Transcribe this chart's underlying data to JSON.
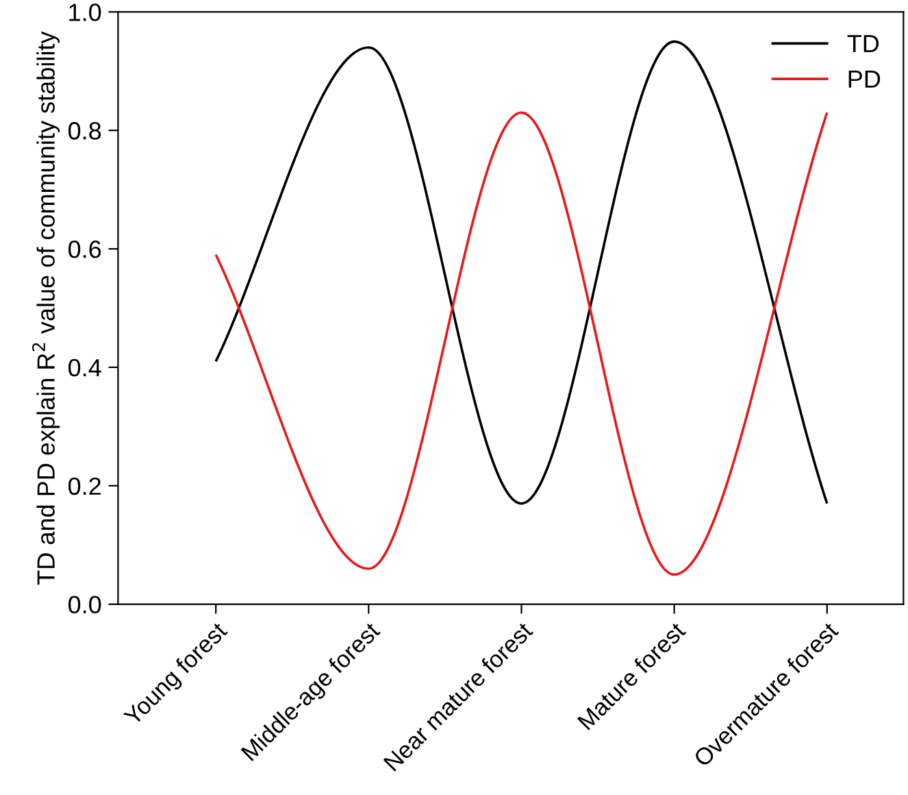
{
  "chart_data": {
    "type": "line",
    "ylabel": "TD and PD explain R$^{2}$ value of community stability",
    "categories": [
      "Young forest",
      "Middle-age forest",
      "Near mature forest",
      "Mature forest",
      "Overmature forest"
    ],
    "series": [
      {
        "name": "TD",
        "color": "#000000",
        "values": [
          0.41,
          0.94,
          0.17,
          0.95,
          0.17
        ]
      },
      {
        "name": "PD",
        "color": "#e8191b",
        "values": [
          0.59,
          0.06,
          0.83,
          0.05,
          0.83
        ]
      }
    ],
    "ylim": [
      0.0,
      1.0
    ],
    "yticks": [
      {
        "value": 0,
        "label": "0.0"
      },
      0.2,
      0.4,
      0.6,
      0.8,
      {
        "value": 1,
        "label": "1.0"
      }
    ],
    "legend": "top right",
    "grid": false,
    "marker": "none",
    "line_style": "solid"
  }
}
